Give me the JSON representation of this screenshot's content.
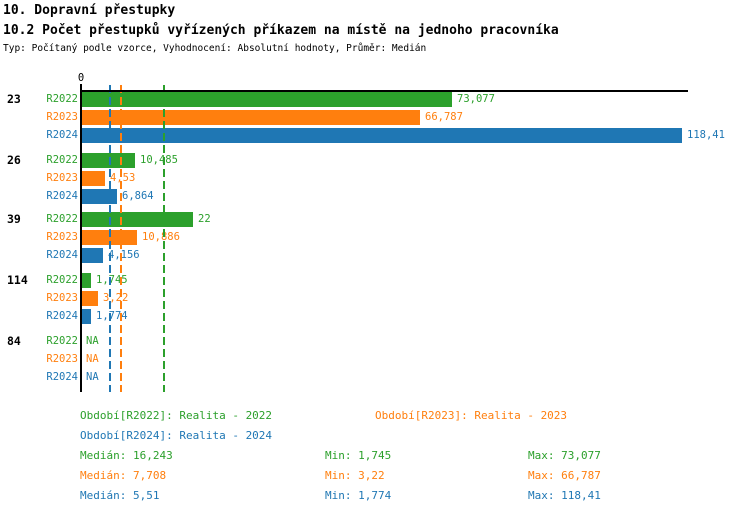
{
  "header": {
    "title_line1": "10. Dopravní přestupky",
    "title_line2": "10.2 Počet přestupků vyřízených příkazem na místě na jednoho pracovníka",
    "subtitle": "Typ: Počítaný podle vzorce, Vyhodnocení: Absolutní hodnoty, Průměr: Medián"
  },
  "colors": {
    "r2022": "#2ca02c",
    "r2023": "#ff7f0e",
    "r2024": "#1f77b4",
    "axis": "#000000",
    "background": "#ffffff"
  },
  "chart_data": {
    "type": "bar",
    "orientation": "horizontal",
    "title": "10.2 Počet přestupků vyřízených příkazem na místě na jednoho pracovníka",
    "xlabel": "",
    "ylabel": "",
    "xlim": [
      0,
      120
    ],
    "zero_tick_label": "0",
    "grid": "vertical dashed lines at each series median, colored per series",
    "legend_position": "below chart",
    "series_names": [
      "R2022",
      "R2023",
      "R2024"
    ],
    "categories": [
      "23",
      "26",
      "39",
      "114",
      "84"
    ],
    "groups": [
      {
        "label": "23",
        "values": [
          73.077,
          66.787,
          118.41
        ],
        "value_labels": [
          "73,077",
          "66,787",
          "118,41"
        ]
      },
      {
        "label": "26",
        "values": [
          10.485,
          4.53,
          6.864
        ],
        "value_labels": [
          "10,485",
          "4,53",
          "6,864"
        ]
      },
      {
        "label": "39",
        "values": [
          22,
          10.886,
          4.156
        ],
        "value_labels": [
          "22",
          "10,886",
          "4,156"
        ]
      },
      {
        "label": "114",
        "values": [
          1.745,
          3.22,
          1.774
        ],
        "value_labels": [
          "1,745",
          "3,22",
          "1,774"
        ]
      },
      {
        "label": "84",
        "values": [
          null,
          null,
          null
        ],
        "value_labels": [
          "NA",
          "NA",
          "NA"
        ]
      }
    ],
    "medians": [
      16.243,
      7.708,
      5.51
    ],
    "mins": [
      1.745,
      3.22,
      1.774
    ],
    "maxes": [
      73.077,
      66.787,
      118.41
    ]
  },
  "legend": {
    "r2022": "Období[R2022]: Realita - 2022",
    "r2023": "Období[R2023]: Realita - 2023",
    "r2024": "Období[R2024]: Realita - 2024"
  },
  "stats": {
    "r2022": {
      "median": "Medián: 16,243",
      "min": "Min: 1,745",
      "max": "Max: 73,077"
    },
    "r2023": {
      "median": "Medián: 7,708",
      "min": "Min: 3,22",
      "max": "Max: 66,787"
    },
    "r2024": {
      "median": "Medián: 5,51",
      "min": "Min: 1,774",
      "max": "Max: 118,41"
    }
  }
}
